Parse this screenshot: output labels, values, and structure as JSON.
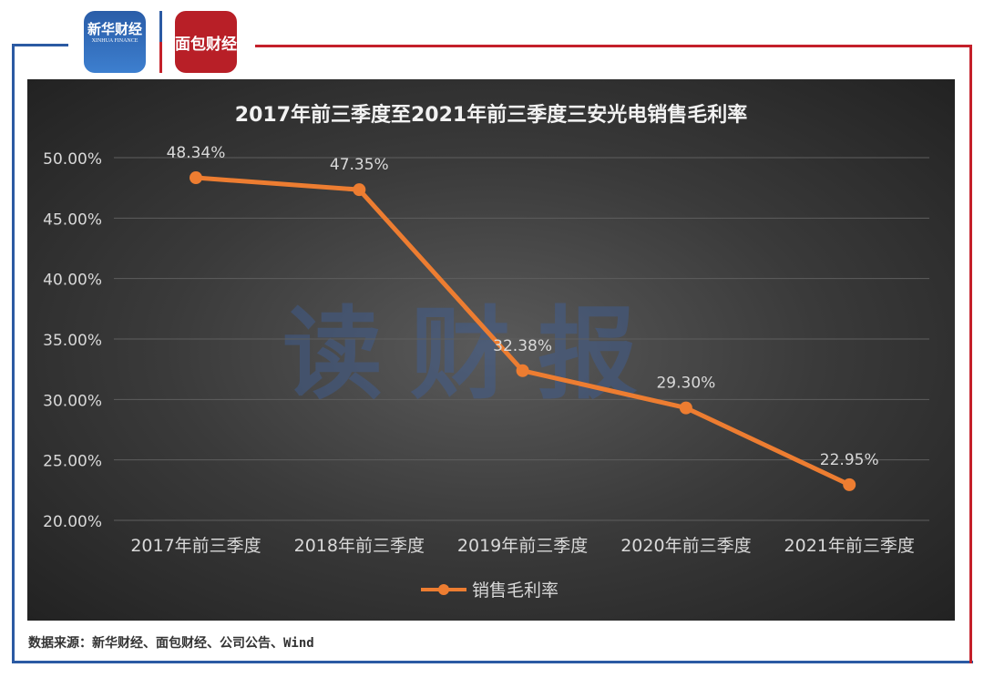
{
  "logos": {
    "left": "新华财经",
    "left_sub": "XINHUA FINANCE",
    "right": "面包财经"
  },
  "watermark": "读财报",
  "source": "数据来源：新华财经、面包财经、公司公告、Wind",
  "colors": {
    "line": "#ed7d31",
    "background": "#3a3a3a",
    "frame_blue": "#2b5aa3",
    "frame_red": "#c4202a"
  },
  "chart_data": {
    "type": "line",
    "title": "2017年前三季度至2021年前三季度三安光电销售毛利率",
    "categories": [
      "2017年前三季度",
      "2018年前三季度",
      "2019年前三季度",
      "2020年前三季度",
      "2021年前三季度"
    ],
    "series": [
      {
        "name": "销售毛利率",
        "values": [
          48.34,
          47.35,
          32.38,
          29.3,
          22.95
        ]
      }
    ],
    "data_labels": [
      "48.34%",
      "47.35%",
      "32.38%",
      "29.30%",
      "22.95%"
    ],
    "yticks": [
      "20.00%",
      "25.00%",
      "30.00%",
      "35.00%",
      "40.00%",
      "45.00%",
      "50.00%"
    ],
    "ylim": [
      20,
      50
    ],
    "grid": true,
    "legend": "bottom"
  }
}
